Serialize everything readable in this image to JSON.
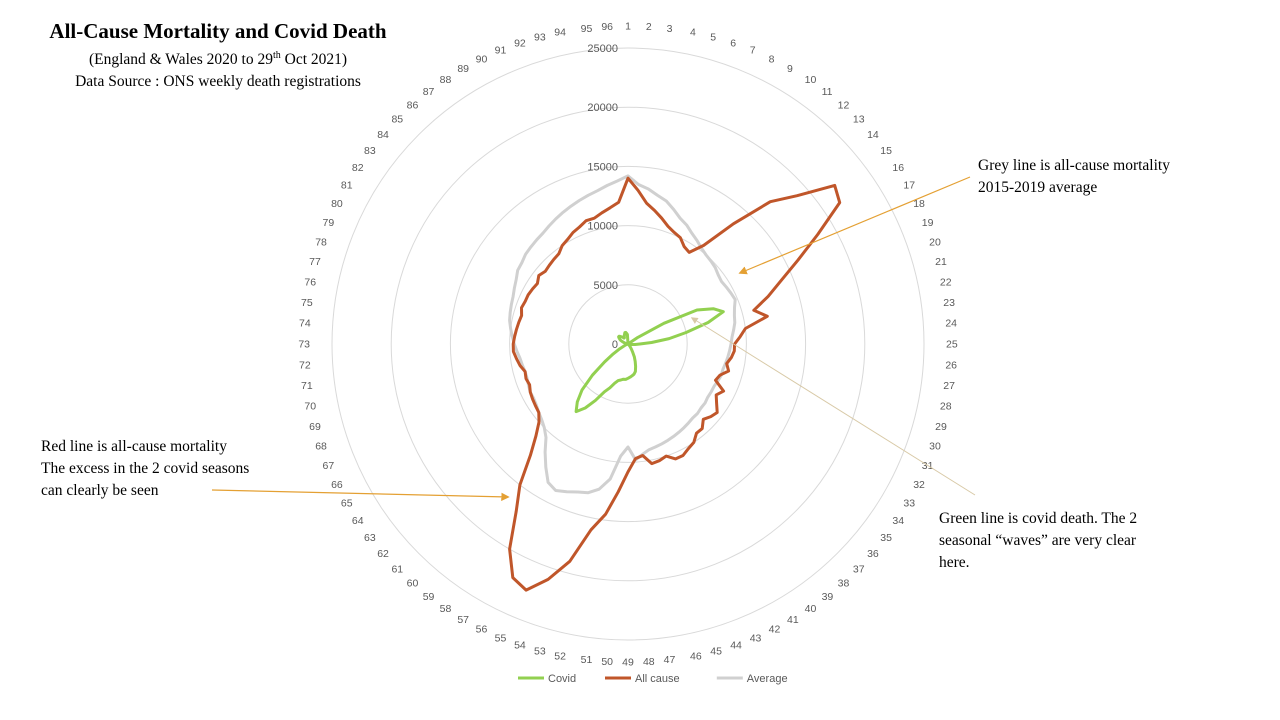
{
  "title": "All-Cause Mortality and Covid Death",
  "subtitle_line1_prefix": "(England & Wales 2020 to 29",
  "subtitle_line1_sup": "th",
  "subtitle_line1_suffix": " Oct 2021)",
  "subtitle_line2": "Data Source : ONS weekly death registrations",
  "annotations": {
    "grey": [
      "Grey line is all-cause mortality",
      "2015-2019 average"
    ],
    "red": [
      "Red line is all-cause mortality",
      "The excess in the 2 covid seasons",
      "can clearly be seen"
    ],
    "green": [
      "Green line is covid death. The 2",
      "seasonal “waves” are very clear",
      "here."
    ]
  },
  "colors": {
    "covid": "#92d050",
    "all_cause": "#c0562a",
    "average": "#d0d0d0",
    "grid": "#d9d9d9",
    "arrow_grey": "#e4a033",
    "arrow_red": "#e4a033",
    "arrow_green": "#d8c9a6",
    "label": "#595959"
  },
  "chart_data": {
    "type": "radar",
    "categories": [
      "1",
      "2",
      "3",
      "4",
      "5",
      "6",
      "7",
      "8",
      "9",
      "10",
      "11",
      "12",
      "13",
      "14",
      "15",
      "16",
      "17",
      "18",
      "19",
      "20",
      "21",
      "22",
      "23",
      "24",
      "25",
      "26",
      "27",
      "28",
      "29",
      "30",
      "31",
      "32",
      "33",
      "34",
      "35",
      "36",
      "37",
      "38",
      "39",
      "40",
      "41",
      "42",
      "43",
      "44",
      "45",
      "46",
      "47",
      "48",
      "49",
      "50",
      "51",
      "52",
      "53",
      "54",
      "55",
      "56",
      "57",
      "58",
      "59",
      "60",
      "61",
      "62",
      "63",
      "64",
      "65",
      "66",
      "67",
      "68",
      "69",
      "70",
      "71",
      "72",
      "73",
      "74",
      "75",
      "76",
      "77",
      "78",
      "79",
      "80",
      "81",
      "82",
      "83",
      "84",
      "85",
      "86",
      "87",
      "88",
      "89",
      "90",
      "91",
      "92",
      "93",
      "94",
      "95",
      "96"
    ],
    "rlim": [
      0,
      25000
    ],
    "r_ticks": [
      0,
      5000,
      10000,
      15000,
      20000,
      25000
    ],
    "series": [
      {
        "name": "Covid",
        "color_key": "covid",
        "values": [
          0,
          0,
          0,
          0,
          0,
          0,
          0,
          0,
          0,
          0,
          0,
          0,
          0,
          0,
          50,
          1000,
          3500,
          6500,
          7800,
          8500,
          7000,
          5000,
          3500,
          2000,
          1000,
          600,
          300,
          200,
          100,
          80,
          60,
          50,
          50,
          60,
          80,
          100,
          100,
          150,
          300,
          500,
          800,
          1200,
          1600,
          2000,
          2400,
          2600,
          2700,
          2800,
          2900,
          3000,
          3000,
          3100,
          3200,
          3500,
          4000,
          4500,
          5500,
          6500,
          7200,
          6500,
          5500,
          4000,
          2500,
          1500,
          800,
          400,
          200,
          100,
          80,
          60,
          50,
          50,
          50,
          60,
          100,
          150,
          200,
          300,
          500,
          700,
          800,
          900,
          1000,
          1000,
          900,
          800,
          700,
          600,
          600,
          700,
          800,
          900,
          1000,
          1000,
          900,
          800
        ]
      },
      {
        "name": "All cause",
        "color_key": "all_cause",
        "values": [
          14000,
          13000,
          12000,
          11500,
          11000,
          10500,
          10200,
          10000,
          9500,
          9300,
          10500,
          13500,
          17000,
          19000,
          22000,
          21500,
          18500,
          16000,
          14000,
          12500,
          11000,
          12000,
          10000,
          9500,
          9000,
          9000,
          8800,
          8500,
          8800,
          8200,
          8000,
          9000,
          8600,
          9000,
          9500,
          9300,
          9000,
          9500,
          9500,
          10000,
          10200,
          10500,
          10500,
          10000,
          10200,
          10300,
          9500,
          9700,
          10800,
          12500,
          14500,
          16000,
          19000,
          21000,
          22500,
          22000,
          20000,
          17000,
          15000,
          12500,
          11000,
          10000,
          9500,
          9400,
          9300,
          9200,
          9000,
          9100,
          9000,
          9300,
          9500,
          9700,
          9700,
          9600,
          9500,
          9400,
          9300,
          9500,
          9400,
          9400,
          9300,
          9200,
          9500,
          9300,
          9400,
          9500,
          9600,
          10000,
          10200,
          10500,
          10700,
          11000,
          11000,
          11300,
          11600,
          12000
        ]
      },
      {
        "name": "Average",
        "color_key": "average",
        "values": [
          14200,
          13500,
          13200,
          12800,
          12500,
          12000,
          11500,
          11200,
          10800,
          10500,
          10200,
          10000,
          9900,
          9800,
          9600,
          9500,
          9600,
          9700,
          9800,
          9500,
          9300,
          9200,
          9000,
          8800,
          8700,
          8600,
          8500,
          8400,
          8300,
          8300,
          8200,
          8100,
          8100,
          8100,
          8200,
          8200,
          8300,
          8300,
          8400,
          8500,
          8600,
          8700,
          8800,
          8900,
          9000,
          9100,
          9400,
          9800,
          8700,
          9500,
          11500,
          12500,
          13000,
          13200,
          13500,
          13800,
          13500,
          12500,
          11500,
          10500,
          10000,
          9700,
          9500,
          9300,
          9200,
          9200,
          9100,
          9000,
          9000,
          9100,
          9200,
          9400,
          9600,
          9800,
          10000,
          10200,
          10300,
          10400,
          10500,
          10700,
          10900,
          11200,
          11300,
          11500,
          11600,
          11700,
          11800,
          12000,
          12200,
          12400,
          12600,
          12800,
          13000,
          13200,
          13500,
          13800
        ]
      }
    ],
    "legend_position": "bottom",
    "grid": true
  }
}
